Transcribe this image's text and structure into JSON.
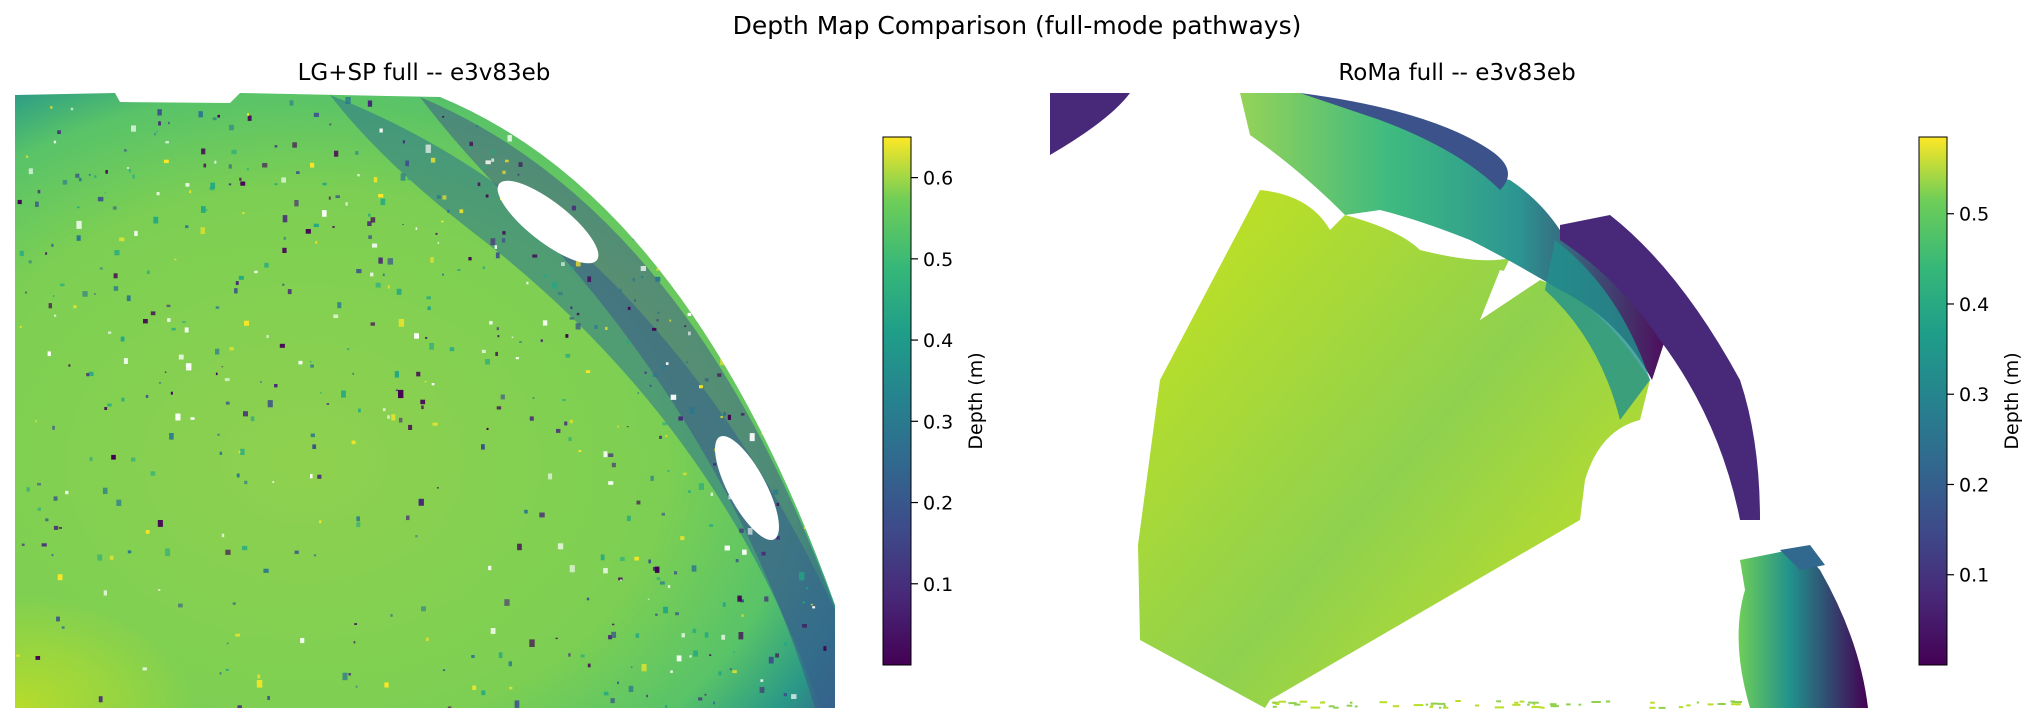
{
  "figure": {
    "suptitle": "Depth Map Comparison (full-mode pathways)"
  },
  "chart_data": [
    {
      "type": "heatmap",
      "title": "LG+SP full -- e3v83eb",
      "colormap": "viridis",
      "colorbar": {
        "label": "Depth (m)",
        "range": [
          0.0,
          0.65
        ],
        "ticks": [
          0.1,
          0.2,
          0.3,
          0.4,
          0.5,
          0.6
        ],
        "tick_labels": [
          "0.1",
          "0.2",
          "0.3",
          "0.4",
          "0.5",
          "0.6"
        ]
      },
      "axes_visible": false
    },
    {
      "type": "heatmap",
      "title": "RoMa full -- e3v83eb",
      "colormap": "viridis",
      "colorbar": {
        "label": "Depth (m)",
        "range": [
          0.0,
          0.585
        ],
        "ticks": [
          0.1,
          0.2,
          0.3,
          0.4,
          0.5
        ],
        "tick_labels": [
          "0.1",
          "0.2",
          "0.3",
          "0.4",
          "0.5"
        ]
      },
      "axes_visible": false
    }
  ],
  "colors": {
    "viridis_low": "#440154",
    "viridis_mid": "#21918c",
    "viridis_high": "#fde725",
    "background": "#ffffff"
  }
}
